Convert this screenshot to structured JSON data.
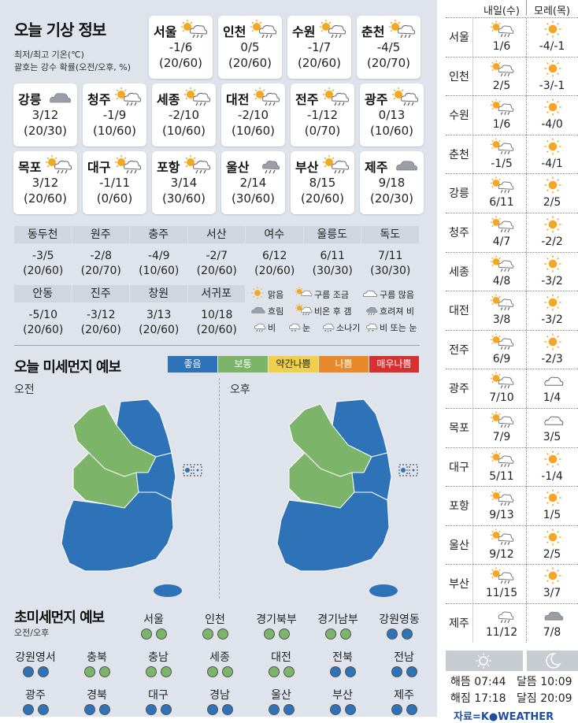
{
  "header": {
    "title": "오늘 기상 정보",
    "note1": "최저/최고 기온(℃)",
    "note2": "괄호는 강수 확률(오전/오후, %)"
  },
  "cards": [
    {
      "city": "서울",
      "temp": "-1/6",
      "prob": "(20/60)",
      "icon": "sun-cloud-rain-icon"
    },
    {
      "city": "인천",
      "temp": "0/5",
      "prob": "(20/60)",
      "icon": "sun-cloud-rain-icon"
    },
    {
      "city": "수원",
      "temp": "-1/7",
      "prob": "(20/60)",
      "icon": "sun-cloud-rain-icon"
    },
    {
      "city": "춘천",
      "temp": "-4/5",
      "prob": "(20/70)",
      "icon": "sun-cloud-rain-icon"
    },
    {
      "city": "강릉",
      "temp": "3/12",
      "prob": "(20/30)",
      "icon": "cloud-icon"
    },
    {
      "city": "청주",
      "temp": "-1/9",
      "prob": "(10/60)",
      "icon": "sun-cloud-rain-icon"
    },
    {
      "city": "세종",
      "temp": "-2/10",
      "prob": "(10/60)",
      "icon": "sun-cloud-rain-icon"
    },
    {
      "city": "대전",
      "temp": "-2/10",
      "prob": "(10/60)",
      "icon": "sun-cloud-rain-icon"
    },
    {
      "city": "전주",
      "temp": "-1/12",
      "prob": "(0/70)",
      "icon": "sun-cloud-rain-icon"
    },
    {
      "city": "광주",
      "temp": "0/13",
      "prob": "(10/60)",
      "icon": "sun-cloud-rain-icon"
    },
    {
      "city": "목포",
      "temp": "3/12",
      "prob": "(20/60)",
      "icon": "sun-cloud-rain-icon"
    },
    {
      "city": "대구",
      "temp": "-1/11",
      "prob": "(0/60)",
      "icon": "sun-cloud-rain-icon"
    },
    {
      "city": "포항",
      "temp": "3/14",
      "prob": "(30/60)",
      "icon": "sun-cloud-rain-icon"
    },
    {
      "city": "울산",
      "temp": "2/14",
      "prob": "(30/60)",
      "icon": "cloud-rain-icon"
    },
    {
      "city": "부산",
      "temp": "8/15",
      "prob": "(20/60)",
      "icon": "sun-cloud-rain-icon"
    },
    {
      "city": "제주",
      "temp": "9/18",
      "prob": "(20/30)",
      "icon": "cloud-icon"
    }
  ],
  "table1": [
    {
      "city": "동두천",
      "temp": "-3/5",
      "prob": "(20/60)"
    },
    {
      "city": "원주",
      "temp": "-2/8",
      "prob": "(20/70)"
    },
    {
      "city": "충주",
      "temp": "-4/9",
      "prob": "(10/60)"
    },
    {
      "city": "서산",
      "temp": "-2/7",
      "prob": "(20/60)"
    },
    {
      "city": "여수",
      "temp": "6/12",
      "prob": "(20/60)"
    },
    {
      "city": "울릉도",
      "temp": "6/11",
      "prob": "(30/30)"
    },
    {
      "city": "독도",
      "temp": "7/11",
      "prob": "(30/30)"
    }
  ],
  "table2": [
    {
      "city": "안동",
      "temp": "-5/10",
      "prob": "(20/60)"
    },
    {
      "city": "진주",
      "temp": "-3/12",
      "prob": "(20/60)"
    },
    {
      "city": "창원",
      "temp": "3/13",
      "prob": "(20/60)"
    },
    {
      "city": "서귀포",
      "temp": "10/18",
      "prob": "(20/60)"
    }
  ],
  "weather_legend": [
    {
      "label": "맑음",
      "icon": "sun-icon"
    },
    {
      "label": "구름 조금",
      "icon": "sun-small-cloud-icon"
    },
    {
      "label": "구름 많음",
      "icon": "cloud-outline-icon"
    },
    {
      "label": "흐림",
      "icon": "cloud-icon"
    },
    {
      "label": "비온 후 갬",
      "icon": "sun-cloud-rain-icon"
    },
    {
      "label": "흐려져 비",
      "icon": "cloud-rain-icon"
    },
    {
      "label": "비",
      "icon": "rain-icon"
    },
    {
      "label": "눈",
      "icon": "snow-icon"
    },
    {
      "label": "소나기",
      "icon": "shower-icon"
    },
    {
      "label": "비 또는 눈",
      "icon": "rain-snow-icon"
    }
  ],
  "dust": {
    "title": "오늘 미세먼지 예보",
    "levels": [
      {
        "label": "좋음",
        "color": "#2e72b8"
      },
      {
        "label": "보통",
        "color": "#7cb46a"
      },
      {
        "label": "약간나쁨",
        "color": "#f0d04a"
      },
      {
        "label": "나쁨",
        "color": "#e8892a"
      },
      {
        "label": "매우나쁨",
        "color": "#d63030"
      }
    ],
    "am_label": "오전",
    "pm_label": "오후"
  },
  "ultra": {
    "title": "초미세먼지 예보",
    "subtitle": "오전/오후",
    "regions": [
      {
        "name": "서울",
        "am": "#7cb46a",
        "pm": "#7cb46a"
      },
      {
        "name": "인천",
        "am": "#7cb46a",
        "pm": "#7cb46a"
      },
      {
        "name": "경기북부",
        "am": "#7cb46a",
        "pm": "#7cb46a"
      },
      {
        "name": "경기남부",
        "am": "#7cb46a",
        "pm": "#7cb46a"
      },
      {
        "name": "강원영동",
        "am": "#2e72b8",
        "pm": "#2e72b8"
      },
      {
        "name": "강원영서",
        "am": "#2e72b8",
        "pm": "#2e72b8"
      },
      {
        "name": "충북",
        "am": "#7cb46a",
        "pm": "#7cb46a"
      },
      {
        "name": "충남",
        "am": "#7cb46a",
        "pm": "#7cb46a"
      },
      {
        "name": "세종",
        "am": "#7cb46a",
        "pm": "#7cb46a"
      },
      {
        "name": "대전",
        "am": "#7cb46a",
        "pm": "#7cb46a"
      },
      {
        "name": "전북",
        "am": "#2e72b8",
        "pm": "#2e72b8"
      },
      {
        "name": "전남",
        "am": "#2e72b8",
        "pm": "#2e72b8"
      },
      {
        "name": "광주",
        "am": "#2e72b8",
        "pm": "#2e72b8"
      },
      {
        "name": "경북",
        "am": "#2e72b8",
        "pm": "#2e72b8"
      },
      {
        "name": "대구",
        "am": "#2e72b8",
        "pm": "#2e72b8"
      },
      {
        "name": "경남",
        "am": "#2e72b8",
        "pm": "#2e72b8"
      },
      {
        "name": "울산",
        "am": "#2e72b8",
        "pm": "#2e72b8"
      },
      {
        "name": "부산",
        "am": "#2e72b8",
        "pm": "#2e72b8"
      },
      {
        "name": "제주",
        "am": "#2e72b8",
        "pm": "#2e72b8"
      }
    ]
  },
  "forecast": {
    "col1": "내일(수)",
    "col2": "모레(목)",
    "rows": [
      {
        "city": "서울",
        "d1": "1/6",
        "d2": "-4/-1",
        "i1": "sun-cloud-rain-icon",
        "i2": "sun-icon"
      },
      {
        "city": "인천",
        "d1": "2/5",
        "d2": "-3/-1",
        "i1": "sun-cloud-rain-icon",
        "i2": "sun-icon"
      },
      {
        "city": "수원",
        "d1": "1/6",
        "d2": "-4/0",
        "i1": "sun-cloud-rain-icon",
        "i2": "sun-icon"
      },
      {
        "city": "춘천",
        "d1": "-1/5",
        "d2": "-4/1",
        "i1": "sun-cloud-rain-icon",
        "i2": "sun-icon"
      },
      {
        "city": "강릉",
        "d1": "6/11",
        "d2": "2/5",
        "i1": "sun-cloud-rain-icon",
        "i2": "sun-icon"
      },
      {
        "city": "청주",
        "d1": "4/7",
        "d2": "-2/2",
        "i1": "sun-cloud-rain-icon",
        "i2": "sun-icon"
      },
      {
        "city": "세종",
        "d1": "4/8",
        "d2": "-3/2",
        "i1": "sun-cloud-rain-icon",
        "i2": "sun-icon"
      },
      {
        "city": "대전",
        "d1": "3/8",
        "d2": "-3/2",
        "i1": "sun-cloud-rain-icon",
        "i2": "sun-icon"
      },
      {
        "city": "전주",
        "d1": "6/9",
        "d2": "-2/3",
        "i1": "sun-cloud-rain-icon",
        "i2": "sun-icon"
      },
      {
        "city": "광주",
        "d1": "7/10",
        "d2": "1/4",
        "i1": "sun-cloud-rain-icon",
        "i2": "cloud-outline-icon"
      },
      {
        "city": "목포",
        "d1": "7/9",
        "d2": "3/5",
        "i1": "sun-cloud-rain-icon",
        "i2": "cloud-outline-icon"
      },
      {
        "city": "대구",
        "d1": "5/11",
        "d2": "-1/4",
        "i1": "sun-cloud-rain-icon",
        "i2": "sun-icon"
      },
      {
        "city": "포항",
        "d1": "9/13",
        "d2": "1/5",
        "i1": "sun-cloud-rain-icon",
        "i2": "sun-icon"
      },
      {
        "city": "울산",
        "d1": "9/12",
        "d2": "2/5",
        "i1": "sun-cloud-rain-icon",
        "i2": "sun-icon"
      },
      {
        "city": "부산",
        "d1": "11/15",
        "d2": "3/7",
        "i1": "sun-cloud-rain-icon",
        "i2": "sun-icon"
      },
      {
        "city": "제주",
        "d1": "11/12",
        "d2": "7/8",
        "i1": "rain-icon",
        "i2": "cloud-icon"
      }
    ]
  },
  "sun_moon": {
    "sunrise": "해뜸 07:44",
    "sunset": "해짐 17:18",
    "moonrise": "달뜸 10:09",
    "moonset": "달짐 20:09"
  },
  "source": "자료=K●WEATHER"
}
